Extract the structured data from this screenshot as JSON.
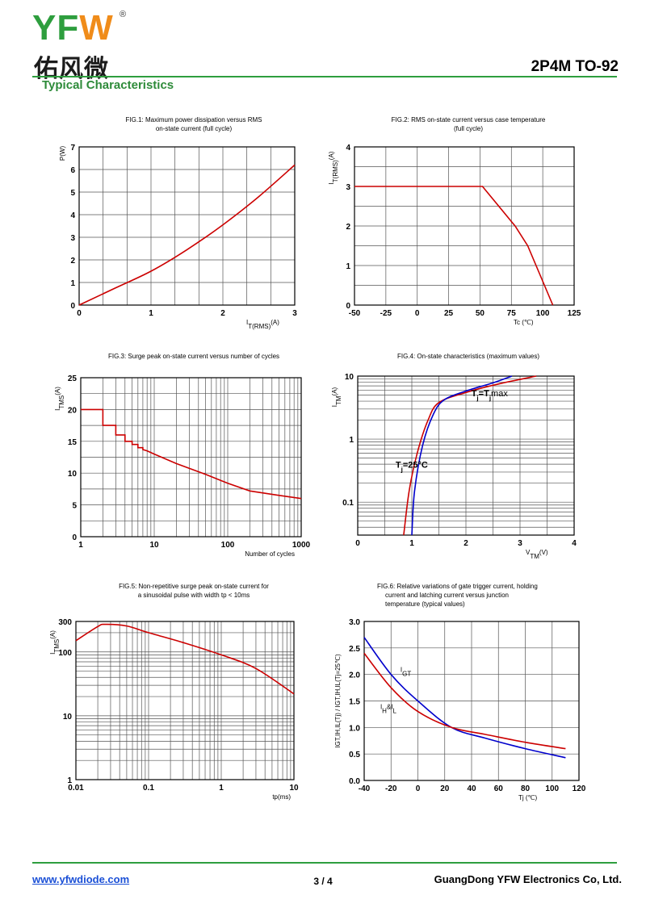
{
  "header": {
    "logo_text": "YFW",
    "logo_cn": "佑风微",
    "logo_reg": "®",
    "part_number": "2P4M TO-92",
    "section_title": "Typical Characteristics"
  },
  "footer": {
    "website": "www.yfwdiode.com",
    "page": "3 / 4",
    "company": "GuangDong YFW Electronics Co, Ltd."
  },
  "colors": {
    "grid": "#555555",
    "red": "#cc0000",
    "blue": "#0000cc",
    "green": "#2e9e3e"
  },
  "chart_data": [
    {
      "type": "line",
      "title_lines": [
        "FIG.1: Maximum power dissipation versus RMS",
        "on-state current (full cycle)"
      ],
      "ylabel": "P(W)",
      "xlabel_main": "I",
      "xlabel_sub": "T(RMS)",
      "xlabel_unit": "(A)",
      "x_ticks": [
        "0",
        "1",
        "2",
        "3"
      ],
      "y_ticks": [
        "0",
        "1",
        "2",
        "3",
        "4",
        "5",
        "6",
        "7"
      ],
      "xlim": [
        0,
        3
      ],
      "ylim": [
        0,
        7
      ],
      "series": [
        {
          "name": "P",
          "x": [
            0,
            0.5,
            1.0,
            1.5,
            2.0,
            2.5,
            3.0
          ],
          "y": [
            0,
            0.75,
            1.5,
            2.45,
            3.55,
            4.8,
            6.2
          ]
        }
      ]
    },
    {
      "type": "line",
      "title_lines": [
        "FIG.2: RMS on-state current versus case temperature",
        "(full cycle)"
      ],
      "ylabel_main": "I",
      "ylabel_sub": "T(RMS)",
      "ylabel_unit": "(A)",
      "xlabel": "Tc (℃)",
      "x_ticks": [
        "-50",
        "-25",
        "0",
        "25",
        "50",
        "75",
        "100",
        "125"
      ],
      "y_ticks": [
        "0",
        "1",
        "2",
        "3",
        "4"
      ],
      "xlim": [
        -50,
        125
      ],
      "ylim": [
        0,
        4
      ],
      "series": [
        {
          "name": "IT(RMS)",
          "x": [
            -50,
            52,
            78,
            88,
            108
          ],
          "y": [
            3,
            3,
            2,
            1.5,
            0
          ]
        }
      ]
    },
    {
      "type": "line",
      "title_lines": [
        "FIG.3: Surge peak on-state current versus number of cycles"
      ],
      "ylabel_main": "I",
      "ylabel_sub": "TMS",
      "ylabel_unit": "(A)",
      "xlabel": "Number of cycles",
      "x_ticks": [
        "1",
        "10",
        "100",
        "1000"
      ],
      "y_ticks": [
        "0",
        "5",
        "10",
        "15",
        "20",
        "25"
      ],
      "xscale": "log",
      "xlim": [
        1,
        1000
      ],
      "ylim": [
        0,
        25
      ],
      "series": [
        {
          "name": "ITSM",
          "x": [
            1,
            2,
            2,
            3,
            3,
            4,
            4,
            5,
            5,
            6,
            6,
            7,
            7,
            8,
            10,
            20,
            50,
            100,
            200,
            500,
            1000
          ],
          "y": [
            20,
            20,
            17.5,
            17.5,
            16,
            16,
            15,
            15,
            14.5,
            14.5,
            14,
            14,
            13.7,
            13.5,
            13,
            11.5,
            9.8,
            8.4,
            7.2,
            6.5,
            6
          ]
        }
      ]
    },
    {
      "type": "line",
      "title_lines": [
        "FIG.4: On-state characteristics (maximum values)"
      ],
      "ylabel_main": "I",
      "ylabel_sub": "TM",
      "ylabel_unit": "(A)",
      "xlabel_main": "V",
      "xlabel_sub": "TM",
      "xlabel_unit": "(V)",
      "x_ticks": [
        "0",
        "1",
        "2",
        "3",
        "4"
      ],
      "y_ticks": [
        "0.1",
        "1",
        "10"
      ],
      "yscale": "log",
      "xlim": [
        0,
        4
      ],
      "ylim": [
        0.03,
        10
      ],
      "annotations": [
        "Tj=Tjmax",
        "Tj=25°C"
      ],
      "series": [
        {
          "name": "Tj=Tjmax",
          "color": "red",
          "x": [
            0.85,
            0.95,
            1.1,
            1.3,
            1.5,
            2.0,
            2.6,
            3.3
          ],
          "y": [
            0.03,
            0.15,
            0.6,
            2.0,
            3.8,
            5.5,
            7.5,
            10
          ]
        },
        {
          "name": "Tj=25°C",
          "color": "blue",
          "x": [
            1.0,
            1.05,
            1.2,
            1.4,
            1.6,
            2.0,
            2.5,
            2.85
          ],
          "y": [
            0.03,
            0.15,
            0.8,
            2.5,
            4.2,
            5.8,
            7.8,
            10
          ]
        }
      ]
    },
    {
      "type": "line",
      "title_lines": [
        "FIG.5: Non-repetitive surge peak on-state current for",
        "a sinusoidal pulse with width tp < 10ms"
      ],
      "ylabel_main": "I",
      "ylabel_sub": "TMS",
      "ylabel_unit": "(A)",
      "xlabel": "tp(ms)",
      "x_ticks": [
        "0.01",
        "0.1",
        "1",
        "10"
      ],
      "y_ticks": [
        "1",
        "10",
        "100",
        "300"
      ],
      "xscale": "log",
      "yscale": "log",
      "xlim": [
        0.01,
        10
      ],
      "ylim": [
        1,
        300
      ],
      "series": [
        {
          "name": "ITSM",
          "x": [
            0.01,
            0.02,
            0.025,
            0.05,
            0.1,
            0.3,
            1,
            3,
            10
          ],
          "y": [
            150,
            250,
            270,
            255,
            200,
            140,
            90,
            55,
            22
          ]
        }
      ]
    },
    {
      "type": "line",
      "title_lines": [
        "FIG.6: Relative variations of gate trigger current, holding",
        "current and latching current versus junction",
        "temperature (typical values)"
      ],
      "ylabel": "IGT,IH,IL(Tj) / IGT,IH,IL(Tj=25℃)",
      "xlabel": "Tj (℃)",
      "x_ticks": [
        "-40",
        "-20",
        "0",
        "20",
        "40",
        "60",
        "80",
        "100",
        "120"
      ],
      "y_ticks": [
        "0.0",
        "0.5",
        "1.0",
        "1.5",
        "2.0",
        "2.5",
        "3.0"
      ],
      "xlim": [
        -40,
        120
      ],
      "ylim": [
        0,
        3
      ],
      "annotations": [
        "IGT",
        "IH&IL"
      ],
      "series": [
        {
          "name": "IGT",
          "color": "blue",
          "x": [
            -40,
            -20,
            0,
            25,
            50,
            80,
            110
          ],
          "y": [
            2.7,
            2.0,
            1.5,
            1.0,
            0.8,
            0.6,
            0.43
          ]
        },
        {
          "name": "IH&IL",
          "color": "red",
          "x": [
            -40,
            -20,
            0,
            25,
            50,
            80,
            110
          ],
          "y": [
            2.4,
            1.75,
            1.3,
            1.0,
            0.87,
            0.72,
            0.6
          ]
        }
      ]
    }
  ]
}
